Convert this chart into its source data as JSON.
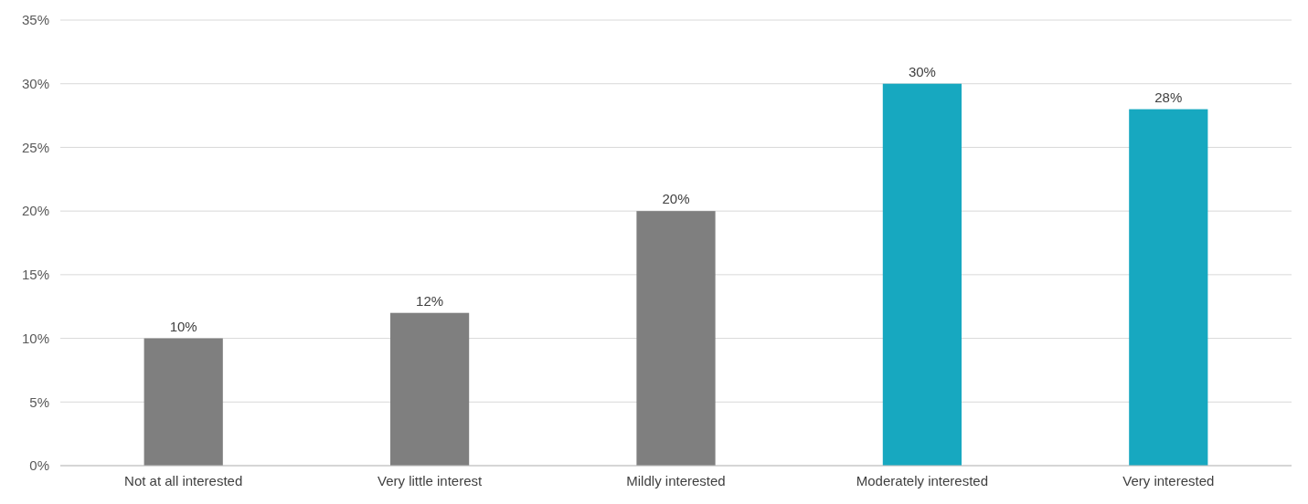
{
  "chart_data": {
    "type": "bar",
    "categories": [
      "Not at all interested",
      "Very little interest",
      "Mildly interested",
      "Moderately interested",
      "Very interested"
    ],
    "values": [
      10,
      12,
      20,
      30,
      28
    ],
    "colors": [
      "#7f7f7f",
      "#7f7f7f",
      "#7f7f7f",
      "#17a8c0",
      "#17a8c0"
    ],
    "value_labels": [
      "10%",
      "12%",
      "20%",
      "30%",
      "28%"
    ],
    "ylim": [
      0,
      35
    ],
    "yticks": [
      {
        "value": 0,
        "label": "0%"
      },
      {
        "value": 5,
        "label": "5%"
      },
      {
        "value": 10,
        "label": "10%"
      },
      {
        "value": 15,
        "label": "15%"
      },
      {
        "value": 20,
        "label": "20%"
      },
      {
        "value": 25,
        "label": "25%"
      },
      {
        "value": 30,
        "label": "30%"
      },
      {
        "value": 35,
        "label": "35%"
      }
    ],
    "grid": "y"
  }
}
